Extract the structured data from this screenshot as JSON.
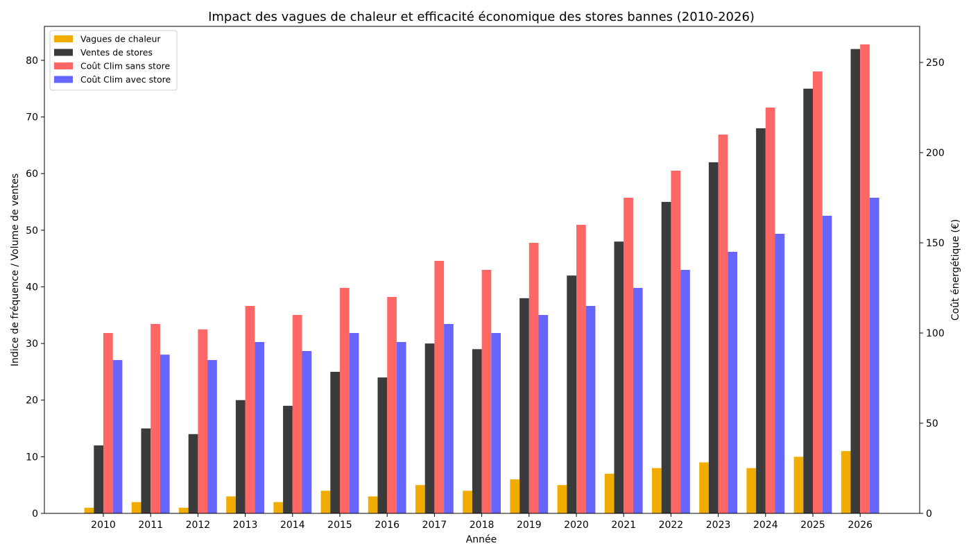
{
  "colors": {
    "vagues": "#f0ad00",
    "ventes": "#3b3b3b",
    "sans": "#ff6666",
    "avec": "#6666ff"
  },
  "chart_data": {
    "type": "bar",
    "title": "Impact des vagues de chaleur et efficacité économique des stores bannes (2010-2026)",
    "xlabel": "Année",
    "ylabel_left": "Indice de fréquence / Volume de ventes",
    "ylabel_right": "Coût énergétique (€)",
    "categories": [
      "2010",
      "2011",
      "2012",
      "2013",
      "2014",
      "2015",
      "2016",
      "2017",
      "2018",
      "2019",
      "2020",
      "2021",
      "2022",
      "2023",
      "2024",
      "2025",
      "2026"
    ],
    "ylim_left": [
      0,
      86
    ],
    "ylim_right": [
      0,
      270
    ],
    "yticks_left": [
      0,
      10,
      20,
      30,
      40,
      50,
      60,
      70,
      80
    ],
    "yticks_right": [
      0,
      50,
      100,
      150,
      200,
      250
    ],
    "legend_position": "top-left",
    "series": [
      {
        "name": "Vagues de chaleur",
        "axis": "left",
        "color_key": "vagues",
        "values": [
          1,
          2,
          1,
          3,
          2,
          4,
          3,
          5,
          4,
          6,
          5,
          7,
          8,
          9,
          8,
          10,
          11
        ]
      },
      {
        "name": "Ventes de stores",
        "axis": "left",
        "color_key": "ventes",
        "values": [
          12,
          15,
          14,
          20,
          19,
          25,
          24,
          30,
          29,
          38,
          42,
          48,
          55,
          62,
          68,
          75,
          82
        ]
      },
      {
        "name": "Coût Clim sans store",
        "axis": "right",
        "color_key": "sans",
        "values": [
          100,
          105,
          102,
          115,
          110,
          125,
          120,
          140,
          135,
          150,
          160,
          175,
          190,
          210,
          225,
          245,
          260
        ]
      },
      {
        "name": "Coût Clim avec store",
        "axis": "right",
        "color_key": "avec",
        "values": [
          85,
          88,
          85,
          95,
          90,
          100,
          95,
          105,
          100,
          110,
          115,
          125,
          135,
          145,
          155,
          165,
          175
        ]
      }
    ]
  }
}
